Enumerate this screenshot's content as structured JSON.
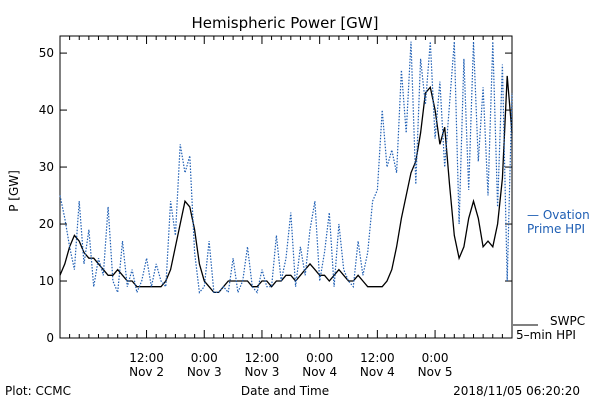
{
  "chart_data": {
    "type": "line",
    "title": "Hemispheric Power [GW]",
    "ylabel": "P [GW]",
    "xlabel": "Date and Time",
    "ylim": [
      0,
      53
    ],
    "xlim": [
      0,
      94
    ],
    "x_unit": "hours since Nov 1 18:00",
    "yticks": [
      0,
      10,
      20,
      30,
      40,
      50
    ],
    "xticks": [
      {
        "x": 18,
        "time": "12:00",
        "date": "Nov 2"
      },
      {
        "x": 30,
        "time": "0:00",
        "date": "Nov 3"
      },
      {
        "x": 42,
        "time": "12:00",
        "date": "Nov 3"
      },
      {
        "x": 54,
        "time": "0:00",
        "date": "Nov 4"
      },
      {
        "x": 66,
        "time": "12:00",
        "date": "Nov 4"
      },
      {
        "x": 78,
        "time": "0:00",
        "date": "Nov 5"
      }
    ],
    "legend": {
      "ovation": "— Ovation",
      "ovation_line2": "Prime HPI",
      "swpc": "SWPC",
      "swpc_line2": "5–min HPI",
      "ovation_color": "#1f5fb4",
      "swpc_color": "#000000"
    },
    "series": [
      {
        "name": "SWPC 5-min HPI",
        "color": "#000000",
        "style": "solid",
        "x": [
          0,
          1,
          2,
          3,
          4,
          5,
          6,
          7,
          8,
          9,
          10,
          11,
          12,
          13,
          14,
          15,
          16,
          17,
          18,
          19,
          20,
          21,
          22,
          23,
          24,
          25,
          26,
          27,
          28,
          29,
          30,
          31,
          32,
          33,
          34,
          35,
          36,
          37,
          38,
          39,
          40,
          41,
          42,
          43,
          44,
          45,
          46,
          47,
          48,
          49,
          50,
          51,
          52,
          53,
          54,
          55,
          56,
          57,
          58,
          59,
          60,
          61,
          62,
          63,
          64,
          65,
          66,
          67,
          68,
          69,
          70,
          71,
          72,
          73,
          74,
          75,
          76,
          77,
          78,
          79,
          80,
          81,
          82,
          83,
          84,
          85,
          86,
          87,
          88,
          89,
          90,
          91,
          92,
          93,
          94
        ],
        "y": [
          11,
          13,
          16,
          18,
          17,
          15,
          14,
          14,
          13,
          12,
          11,
          11,
          12,
          11,
          10,
          10,
          9,
          9,
          9,
          9,
          9,
          9,
          10,
          12,
          16,
          20,
          24,
          23,
          19,
          13,
          10,
          9,
          8,
          8,
          9,
          10,
          10,
          10,
          10,
          10,
          9,
          9,
          10,
          10,
          9,
          10,
          10,
          11,
          11,
          10,
          11,
          12,
          13,
          12,
          11,
          11,
          10,
          11,
          12,
          11,
          10,
          10,
          11,
          10,
          9,
          9,
          9,
          9,
          10,
          12,
          16,
          21,
          25,
          29,
          31,
          36,
          43,
          44,
          40,
          34,
          37,
          27,
          18,
          14,
          16,
          21,
          24,
          21,
          16,
          17,
          16,
          20,
          28,
          46,
          36
        ]
      },
      {
        "name": "Ovation Prime HPI",
        "color": "#1f5fb4",
        "style": "dotted",
        "x": [
          0,
          1,
          2,
          3,
          4,
          5,
          6,
          7,
          8,
          9,
          10,
          11,
          12,
          13,
          14,
          15,
          16,
          17,
          18,
          19,
          20,
          21,
          22,
          23,
          24,
          25,
          26,
          27,
          28,
          29,
          30,
          31,
          32,
          33,
          34,
          35,
          36,
          37,
          38,
          39,
          40,
          41,
          42,
          43,
          44,
          45,
          46,
          47,
          48,
          49,
          50,
          51,
          52,
          53,
          54,
          55,
          56,
          57,
          58,
          59,
          60,
          61,
          62,
          63,
          64,
          65,
          66,
          67,
          68,
          69,
          70,
          71,
          72,
          73,
          74,
          75,
          76,
          77,
          78,
          79,
          80,
          81,
          82,
          83,
          84,
          85,
          86,
          87,
          88,
          89,
          90,
          91,
          92,
          93,
          94
        ],
        "y": [
          25,
          21,
          16,
          12,
          24,
          13,
          19,
          9,
          14,
          11,
          23,
          10,
          8,
          17,
          9,
          12,
          8,
          10,
          14,
          9,
          13,
          10,
          9,
          24,
          18,
          34,
          29,
          32,
          15,
          8,
          9,
          17,
          8,
          8,
          9,
          8,
          14,
          8,
          10,
          16,
          9,
          8,
          12,
          9,
          9,
          18,
          10,
          14,
          22,
          9,
          16,
          11,
          19,
          24,
          10,
          15,
          22,
          9,
          20,
          12,
          10,
          9,
          17,
          11,
          15,
          24,
          26,
          40,
          30,
          33,
          29,
          47,
          36,
          52,
          27,
          49,
          41,
          52,
          35,
          45,
          30,
          41,
          52,
          20,
          49,
          26,
          52,
          31,
          44,
          25,
          52,
          23,
          48,
          10,
          43
        ]
      }
    ]
  },
  "footer": {
    "left": "Plot: CCMC",
    "right": "2018/11/05 06:20:20"
  }
}
